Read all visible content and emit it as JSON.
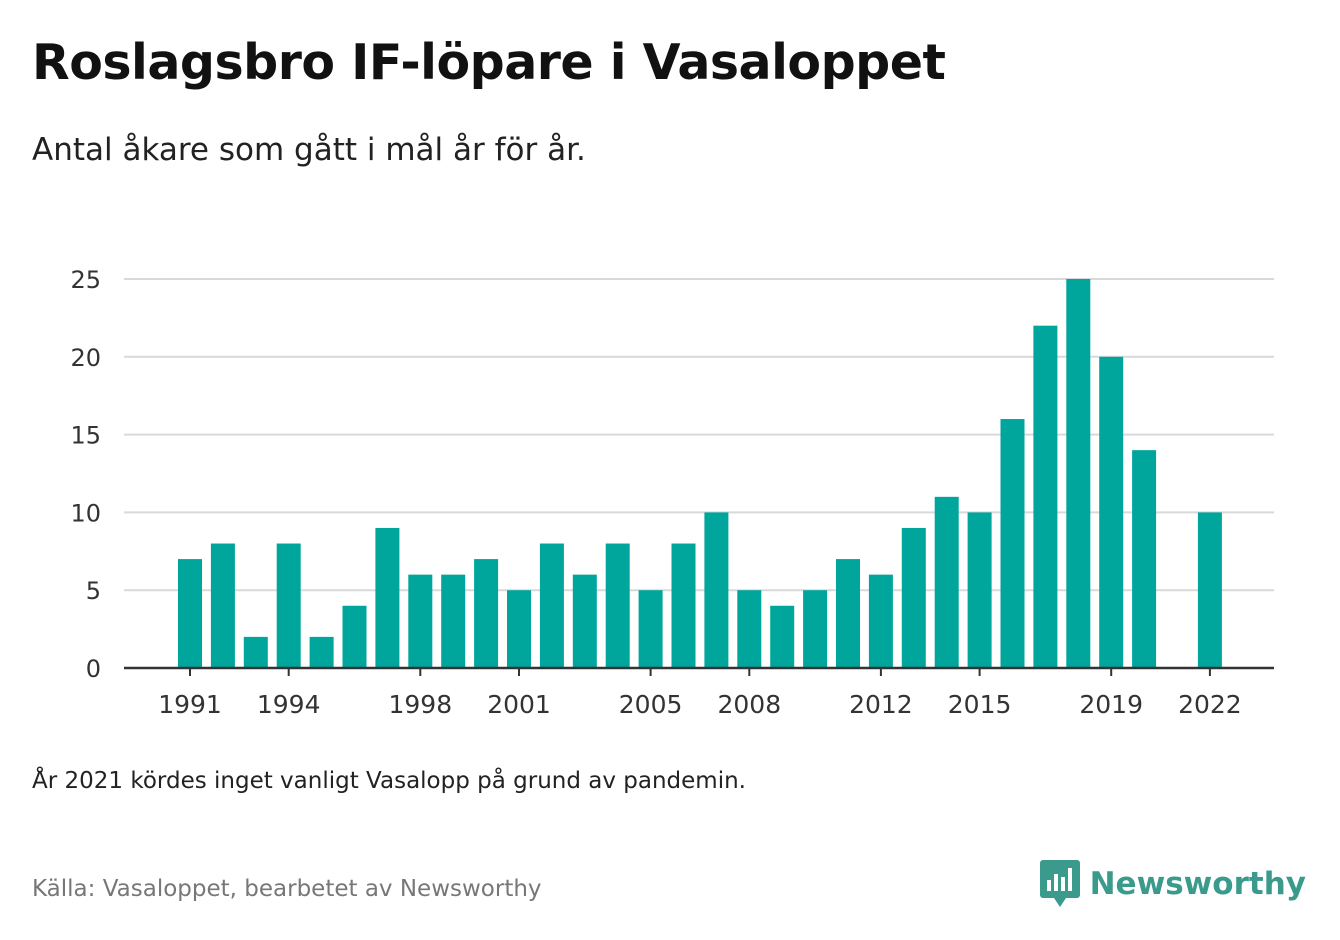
{
  "header": {
    "title": "Roslagsbro IF-löpare i Vasaloppet",
    "subtitle": "Antal åkare som gått i mål år för år."
  },
  "footer": {
    "note": "År 2021 kördes inget vanligt Vasalopp på grund av pandemin.",
    "source": "Källa: Vasaloppet, bearbetet av Newsworthy",
    "brand": "Newsworthy",
    "brand_icon": "newsworthy-logo-icon"
  },
  "colors": {
    "bar": "#00a69c",
    "brand": "#3a9a8c",
    "grid": "#d9d9d9",
    "axis": "#333333"
  },
  "chart_data": {
    "type": "bar",
    "categories": [
      1991,
      1992,
      1993,
      1994,
      1995,
      1996,
      1997,
      1998,
      1999,
      2000,
      2001,
      2002,
      2003,
      2004,
      2005,
      2006,
      2007,
      2008,
      2009,
      2010,
      2011,
      2012,
      2013,
      2014,
      2015,
      2016,
      2017,
      2018,
      2019,
      2020,
      2021,
      2022
    ],
    "values": [
      7,
      8,
      2,
      8,
      2,
      4,
      9,
      6,
      6,
      7,
      5,
      8,
      6,
      8,
      5,
      8,
      10,
      5,
      4,
      5,
      7,
      6,
      9,
      11,
      10,
      16,
      22,
      25,
      20,
      14,
      null,
      10
    ],
    "x_tick_labels": [
      "1991",
      "1994",
      "1998",
      "2001",
      "2005",
      "2008",
      "2012",
      "2015",
      "2019",
      "2022"
    ],
    "y_ticks": [
      0,
      5,
      10,
      15,
      20,
      25
    ],
    "ylim": [
      0,
      25
    ],
    "grid": true,
    "legend": false,
    "xlabel": "",
    "ylabel": ""
  }
}
